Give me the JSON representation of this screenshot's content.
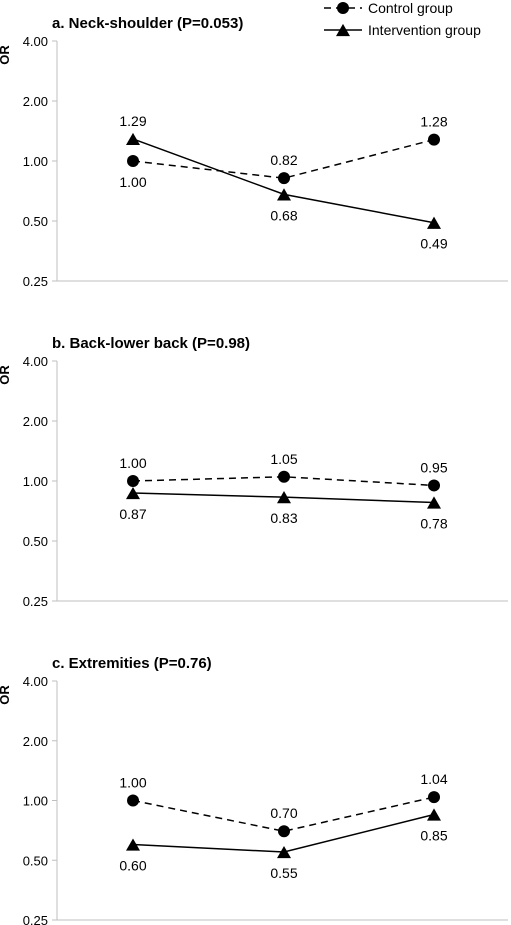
{
  "chart_data": [
    {
      "type": "line",
      "title": "a. Neck-shoulder (P=0.053)",
      "ylabel": "OR",
      "yscale": "log2",
      "ylim": [
        0.25,
        4.0
      ],
      "ytick_values": [
        0.25,
        0.5,
        1.0,
        2.0,
        4.0
      ],
      "ytick_labels": [
        "0.25",
        "0.50",
        "1.00",
        "2.00",
        "4.00"
      ],
      "x": [
        1,
        2,
        3
      ],
      "series": [
        {
          "name": "Control group",
          "values": [
            1.0,
            0.82,
            1.28
          ],
          "labels": [
            "1.00",
            "0.82",
            "1.28"
          ],
          "label_pos": [
            "below",
            "above",
            "above"
          ]
        },
        {
          "name": "Intervention group",
          "values": [
            1.29,
            0.68,
            0.49
          ],
          "labels": [
            "1.29",
            "0.68",
            "0.49"
          ],
          "label_pos": [
            "above",
            "below",
            "below"
          ]
        }
      ]
    },
    {
      "type": "line",
      "title": "b. Back-lower back (P=0.98)",
      "ylabel": "OR",
      "yscale": "log2",
      "ylim": [
        0.25,
        4.0
      ],
      "ytick_values": [
        0.25,
        0.5,
        1.0,
        2.0,
        4.0
      ],
      "ytick_labels": [
        "0.25",
        "0.50",
        "1.00",
        "2.00",
        "4.00"
      ],
      "x": [
        1,
        2,
        3
      ],
      "series": [
        {
          "name": "Control group",
          "values": [
            1.0,
            1.05,
            0.95
          ],
          "labels": [
            "1.00",
            "1.05",
            "0.95"
          ],
          "label_pos": [
            "above",
            "above",
            "above"
          ]
        },
        {
          "name": "Intervention group",
          "values": [
            0.87,
            0.83,
            0.78
          ],
          "labels": [
            "0.87",
            "0.83",
            "0.78"
          ],
          "label_pos": [
            "below",
            "below",
            "below"
          ]
        }
      ]
    },
    {
      "type": "line",
      "title": "c. Extremities (P=0.76)",
      "ylabel": "OR",
      "yscale": "log2",
      "ylim": [
        0.25,
        4.0
      ],
      "ytick_values": [
        0.25,
        0.5,
        1.0,
        2.0,
        4.0
      ],
      "ytick_labels": [
        "0.25",
        "0.50",
        "1.00",
        "2.00",
        "4.00"
      ],
      "x": [
        1,
        2,
        3
      ],
      "series": [
        {
          "name": "Control group",
          "values": [
            1.0,
            0.7,
            1.04
          ],
          "labels": [
            "1.00",
            "0.70",
            "1.04"
          ],
          "label_pos": [
            "above",
            "above",
            "above"
          ]
        },
        {
          "name": "Intervention group",
          "values": [
            0.6,
            0.55,
            0.85
          ],
          "labels": [
            "0.60",
            "0.55",
            "0.85"
          ],
          "label_pos": [
            "below",
            "below",
            "below"
          ]
        }
      ]
    }
  ],
  "legend": {
    "placement": "top-right",
    "items": [
      {
        "name": "Control group",
        "line_style": "dashed",
        "marker": "circle"
      },
      {
        "name": "Intervention group",
        "line_style": "solid",
        "marker": "triangle"
      }
    ]
  },
  "colors": {
    "line": "#000000",
    "axis": "#bfbfbf",
    "background": "#ffffff"
  }
}
